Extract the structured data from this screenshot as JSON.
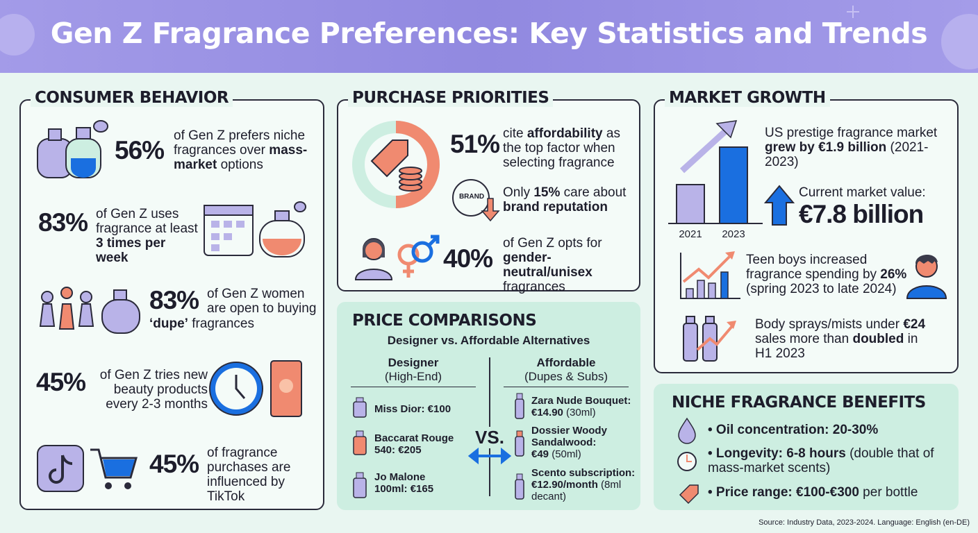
{
  "header": {
    "title": "Gen Z Fragrance Preferences: Key Statistics and Trends"
  },
  "consumer_behavior": {
    "title": "CONSUMER BEHAVIOR",
    "items": [
      {
        "stat": "56%",
        "text": [
          "of Gen Z prefers niche fragrances over ",
          "mass-market",
          " options"
        ]
      },
      {
        "stat": "83%",
        "text": [
          "of Gen Z uses fragrance at least ",
          "3 times per week"
        ]
      },
      {
        "stat": "83%",
        "text": [
          "of Gen Z women are open to buying ",
          "‘dupe’",
          " fragrances"
        ]
      },
      {
        "stat": "45%",
        "text": [
          "of Gen Z tries new beauty products every 2-3 months"
        ]
      },
      {
        "stat": "45%",
        "text": [
          "of fragrance purchases are influenced by TikTok"
        ]
      }
    ]
  },
  "purchase_priorities": {
    "title": "PURCHASE PRIORITIES",
    "brand_icon": "BRAND",
    "items": [
      {
        "stat": "51%",
        "text": [
          "cite ",
          "affordability",
          " as the top factor when selecting fragrance"
        ]
      },
      {
        "text": [
          "Only ",
          "15%",
          " care about ",
          "brand reputation"
        ]
      },
      {
        "stat": "40%",
        "text": [
          "of Gen Z opts for ",
          "gender-neutral/unisex",
          " fragrances"
        ]
      }
    ]
  },
  "price_comparisons": {
    "title": "PRICE COMPARISONS",
    "subtitle": "Designer vs. Affordable Alternatives",
    "vs": "VS.",
    "designer": {
      "title": "Designer",
      "subtitle": "(High-End)",
      "items": [
        [
          "Miss Dior: €100"
        ],
        [
          "Baccarat Rouge 540: €205"
        ],
        [
          "Jo Malone 100ml: €165"
        ]
      ]
    },
    "affordable": {
      "title": "Affordable",
      "subtitle": "(Dupes & Subs)",
      "items": [
        [
          "Zara Nude Bouquet: €14.90",
          " (30ml)"
        ],
        [
          "Dossier Woody Sandalwood: €49",
          " (50ml)"
        ],
        [
          "Scento subscription: €12.90/month",
          " (8ml decant)"
        ]
      ]
    }
  },
  "market_growth": {
    "title": "MARKET GROWTH",
    "chart_labels": [
      "2021",
      "2023"
    ],
    "items": [
      {
        "text": [
          "US prestige fragrance market ",
          "grew by €1.9 billion",
          " (2021-2023)"
        ]
      },
      {
        "label": "Current market value:",
        "value": "€7.8 billion"
      },
      {
        "text": [
          "Teen boys increased fragrance spending by ",
          "26%",
          " (spring 2023 to late 2024)"
        ]
      },
      {
        "text": [
          "Body sprays/mists under ",
          "€24",
          " sales more than ",
          "doubled",
          " in H1 2023"
        ]
      }
    ]
  },
  "niche_benefits": {
    "title": "NICHE FRAGRANCE BENEFITS",
    "items": [
      [
        "• Oil concentration: 20-30%"
      ],
      [
        "• Longevity: 6-8 hours",
        " (double that of mass-market scents)"
      ],
      [
        "• Price range: €100-€300",
        " per bottle"
      ]
    ]
  },
  "footer": {
    "source": "Source: Industry Data, 2023-2024. Language: English (en-DE)"
  }
}
